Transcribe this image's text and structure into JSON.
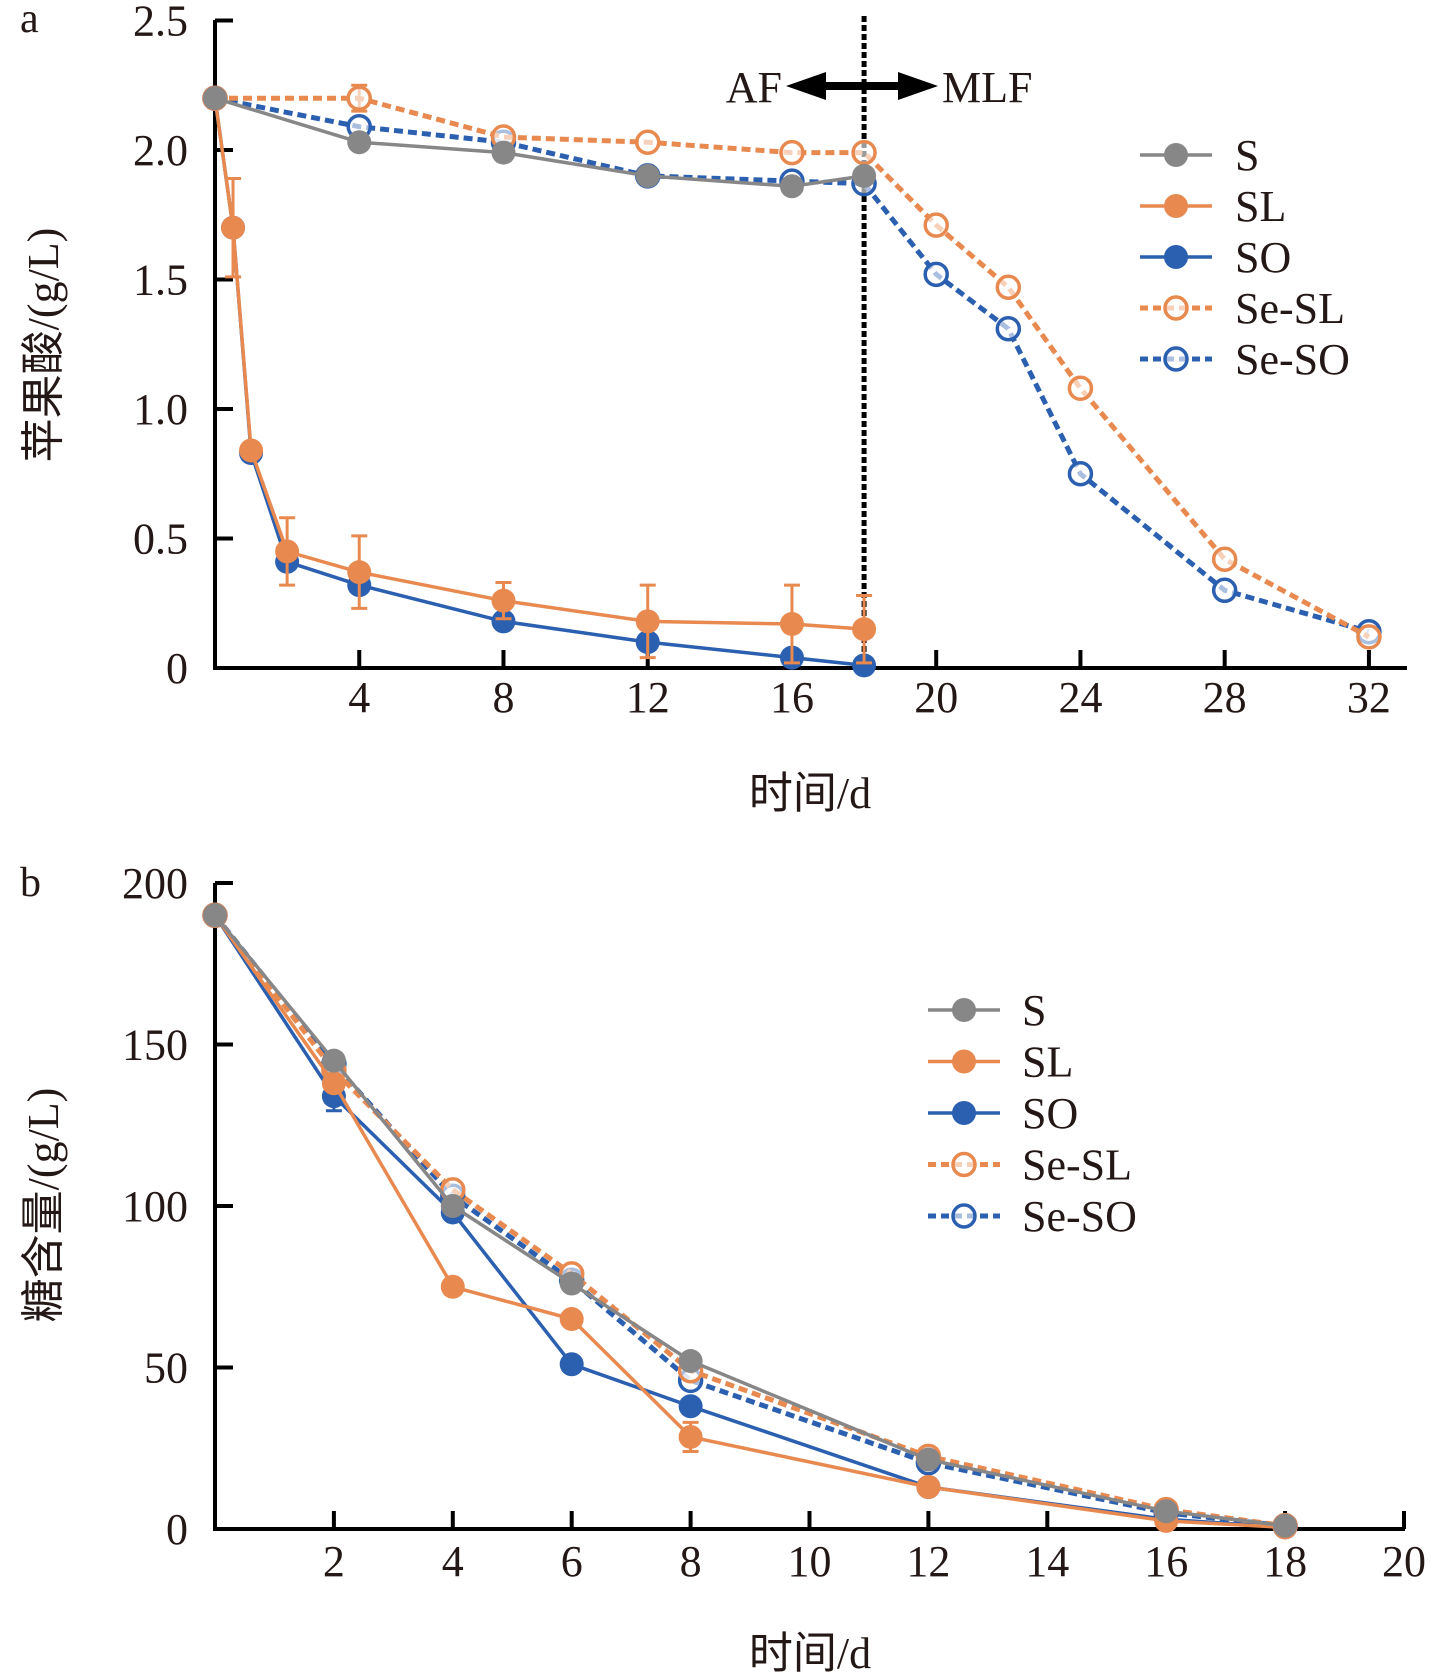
{
  "colors": {
    "S": "#878787",
    "SL": "#E8894F",
    "SO": "#2B5FAF",
    "axis": "#000000",
    "text": "#231815"
  },
  "chart_data": [
    {
      "type": "line",
      "panel_label": "a",
      "xlabel": "时间/d",
      "ylabel": "苹果酸/(g/L)",
      "xlim": [
        0,
        33
      ],
      "ylim": [
        0,
        2.5
      ],
      "xticks": [
        4,
        8,
        12,
        16,
        20,
        24,
        28,
        32
      ],
      "xtick_labels": [
        "4",
        "8",
        "12",
        "16",
        "20",
        "24",
        "28",
        "32"
      ],
      "yticks": [
        0,
        0.5,
        1.0,
        1.5,
        2.0,
        2.5
      ],
      "ytick_labels": [
        "0",
        "0.5",
        "1.0",
        "1.5",
        "2.0",
        "2.5"
      ],
      "grid": false,
      "legend_position": "top-right",
      "annotation": {
        "left": "AF",
        "right": "MLF",
        "divider_x": 18
      },
      "series": [
        {
          "name": "S",
          "color_key": "S",
          "style": "solid",
          "marker": "filled",
          "x": [
            0,
            4,
            8,
            12,
            16,
            18
          ],
          "values": [
            2.2,
            2.03,
            1.99,
            1.9,
            1.86,
            1.9
          ],
          "error": [
            0,
            0,
            0,
            0,
            0,
            0
          ]
        },
        {
          "name": "SL",
          "color_key": "SL",
          "style": "solid",
          "marker": "filled",
          "x": [
            0,
            0.5,
            1,
            2,
            4,
            8,
            12,
            16,
            18
          ],
          "values": [
            2.2,
            1.7,
            0.84,
            0.45,
            0.37,
            0.26,
            0.18,
            0.17,
            0.15
          ],
          "error": [
            0,
            0.19,
            0,
            0.13,
            0.14,
            0.07,
            0.14,
            0.15,
            0.13
          ]
        },
        {
          "name": "SO",
          "color_key": "SO",
          "style": "solid",
          "marker": "filled",
          "x": [
            0,
            0.5,
            1,
            2,
            4,
            8,
            12,
            16,
            18
          ],
          "values": [
            2.2,
            1.7,
            0.83,
            0.41,
            0.32,
            0.18,
            0.1,
            0.04,
            0.01
          ],
          "error": [
            0,
            0,
            0,
            0,
            0,
            0,
            0,
            0,
            0
          ]
        },
        {
          "name": "Se-SL",
          "color_key": "SL",
          "style": "dashed",
          "marker": "open",
          "x": [
            0,
            4,
            8,
            12,
            16,
            18,
            20,
            22,
            24,
            28,
            32
          ],
          "values": [
            2.2,
            2.2,
            2.05,
            2.03,
            1.99,
            1.99,
            1.71,
            1.47,
            1.08,
            0.42,
            0.12
          ],
          "error": [
            0,
            0.05,
            0,
            0,
            0,
            0,
            0,
            0,
            0,
            0,
            0
          ]
        },
        {
          "name": "Se-SO",
          "color_key": "SO",
          "style": "dashed",
          "marker": "open",
          "x": [
            0,
            4,
            8,
            12,
            16,
            18,
            20,
            22,
            24,
            28,
            32
          ],
          "values": [
            2.2,
            2.09,
            2.03,
            1.9,
            1.88,
            1.87,
            1.52,
            1.31,
            0.75,
            0.3,
            0.14
          ],
          "error": [
            0,
            0,
            0,
            0,
            0,
            0,
            0,
            0,
            0,
            0,
            0
          ]
        }
      ]
    },
    {
      "type": "line",
      "panel_label": "b",
      "xlabel": "时间/d",
      "ylabel": "糖含量/(g/L)",
      "xlim": [
        0,
        20
      ],
      "ylim": [
        0,
        200
      ],
      "xticks": [
        2,
        4,
        6,
        8,
        10,
        12,
        14,
        16,
        18,
        20
      ],
      "xtick_labels": [
        "2",
        "4",
        "6",
        "8",
        "10",
        "12",
        "14",
        "16",
        "18",
        "20"
      ],
      "yticks": [
        0,
        50,
        100,
        150,
        200
      ],
      "ytick_labels": [
        "0",
        "50",
        "100",
        "150",
        "200"
      ],
      "grid": false,
      "legend_position": "top-right",
      "series": [
        {
          "name": "S",
          "color_key": "S",
          "style": "solid",
          "marker": "filled",
          "x": [
            0,
            2,
            4,
            6,
            8,
            12,
            16,
            18
          ],
          "values": [
            190,
            145,
            100,
            76,
            52,
            21.5,
            5.5,
            1
          ],
          "error": [
            0,
            0,
            0,
            0,
            0,
            0,
            0,
            0
          ]
        },
        {
          "name": "SL",
          "color_key": "SL",
          "style": "solid",
          "marker": "filled",
          "x": [
            0,
            2,
            4,
            6,
            8,
            12,
            16,
            18
          ],
          "values": [
            190,
            138,
            75,
            65,
            28.5,
            13,
            2.5,
            0.5
          ],
          "error": [
            0,
            0,
            0,
            0,
            4.5,
            0,
            0,
            0
          ]
        },
        {
          "name": "SO",
          "color_key": "SO",
          "style": "solid",
          "marker": "filled",
          "x": [
            0,
            2,
            4,
            6,
            8,
            12,
            16,
            18
          ],
          "values": [
            190,
            134,
            98,
            51,
            38,
            13,
            3,
            0.5
          ],
          "error": [
            0,
            4.5,
            0,
            0,
            0,
            0,
            0,
            0
          ]
        },
        {
          "name": "Se-SL",
          "color_key": "SL",
          "style": "dashed",
          "marker": "open",
          "x": [
            0,
            2,
            4,
            6,
            8,
            12,
            16,
            18
          ],
          "values": [
            190,
            142,
            105,
            79,
            49,
            22.5,
            6,
            1
          ],
          "error": [
            0,
            0,
            0,
            0,
            0,
            0,
            0,
            0
          ]
        },
        {
          "name": "Se-SO",
          "color_key": "SO",
          "style": "dashed",
          "marker": "open",
          "x": [
            0,
            2,
            4,
            6,
            8,
            12,
            16,
            18
          ],
          "values": [
            190,
            144,
            103,
            77,
            46,
            20.5,
            5,
            1
          ],
          "error": [
            0,
            0,
            0,
            0,
            0,
            0,
            0,
            0
          ]
        }
      ]
    }
  ]
}
